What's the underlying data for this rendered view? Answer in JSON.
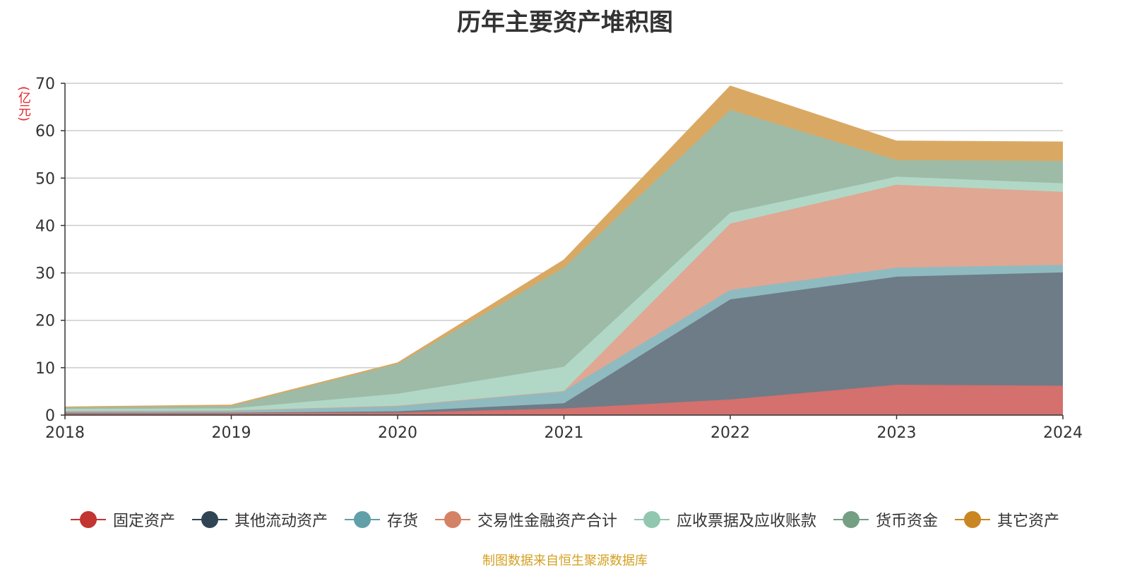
{
  "chart_data": {
    "type": "area",
    "stacked": true,
    "title": "历年主要资产堆积图",
    "ylabel": "(亿元)",
    "x": [
      "2018",
      "2019",
      "2020",
      "2021",
      "2022",
      "2023",
      "2024"
    ],
    "ylim": [
      0,
      70
    ],
    "yticks": [
      "0",
      "10",
      "20",
      "30",
      "40",
      "50",
      "60",
      "70"
    ],
    "grid": true,
    "legend_position": "bottom",
    "series": [
      {
        "name": "固定资产",
        "color": "#c23531",
        "fill": "#d4706d",
        "values": [
          0.4,
          0.4,
          0.5,
          1.4,
          3.3,
          6.4,
          6.2
        ]
      },
      {
        "name": "其他流动资产",
        "color": "#2f4554",
        "fill": "#6e7c87",
        "values": [
          0.1,
          0.1,
          0.3,
          1.1,
          21.1,
          22.8,
          23.9
        ]
      },
      {
        "name": "存货",
        "color": "#61a0a8",
        "fill": "#8fbbc0",
        "values": [
          0.4,
          0.5,
          1.2,
          2.6,
          2.0,
          1.9,
          1.6
        ]
      },
      {
        "name": "交易性金融资产合计",
        "color": "#d48265",
        "fill": "#e0a793",
        "values": [
          0.0,
          0.0,
          0.0,
          0.0,
          14.0,
          17.5,
          15.4
        ]
      },
      {
        "name": "应收票据及应收账款",
        "color": "#91c7ae",
        "fill": "#b1d8c6",
        "values": [
          0.4,
          0.4,
          2.5,
          5.1,
          2.3,
          1.7,
          1.8
        ]
      },
      {
        "name": "货币资金",
        "color": "#749f83",
        "fill": "#9ebba7",
        "values": [
          0.3,
          0.5,
          6.3,
          20.9,
          21.7,
          3.5,
          4.7
        ]
      },
      {
        "name": "其它资产",
        "color": "#ca8622",
        "fill": "#d9a964",
        "values": [
          0.1,
          0.2,
          0.2,
          1.6,
          5.0,
          4.0,
          4.0
        ]
      }
    ]
  },
  "source_note": "制图数据来自恒生聚源数据库"
}
